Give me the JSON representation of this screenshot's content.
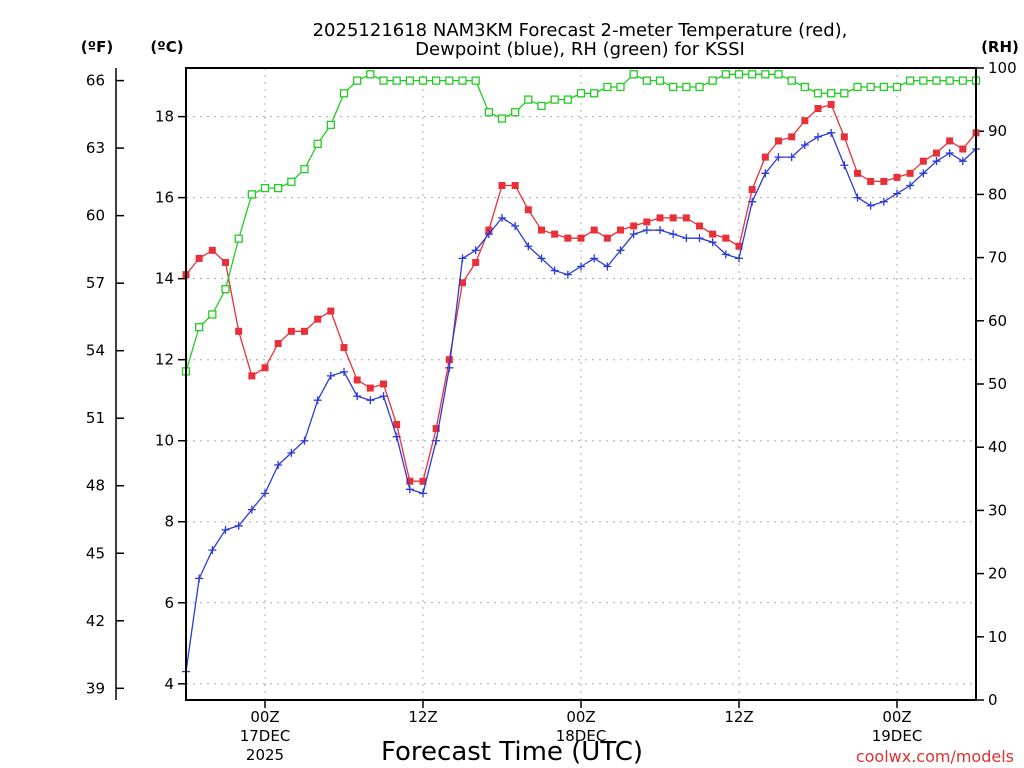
{
  "chart_data": {
    "type": "line",
    "title_line1": "2025121618 NAM3KM Forecast 2-meter Temperature (red),",
    "title_line2": "Dewpoint (blue), RH (green) for KSSI",
    "xlabel": "Forecast Time (UTC)",
    "credit": "coolwx.com/models",
    "units": {
      "fahrenheit": "(ºF)",
      "celsius": "(ºC)",
      "rh": "(RH)"
    },
    "celsius_axis": {
      "min": 3.6,
      "max": 19.2,
      "ticks": [
        "4",
        "6",
        "8",
        "10",
        "12",
        "14",
        "16",
        "18"
      ]
    },
    "fahrenheit_ticks": [
      "39",
      "42",
      "45",
      "48",
      "51",
      "54",
      "57",
      "60",
      "63",
      "66"
    ],
    "rh_axis": {
      "min": 0,
      "max": 100,
      "ticks": [
        "0",
        "10",
        "20",
        "30",
        "40",
        "50",
        "60",
        "70",
        "80",
        "90",
        "100"
      ]
    },
    "x_range_hours": [
      18,
      78
    ],
    "x_ticks": [
      {
        "hour": 24,
        "label": "00Z",
        "date": "17DEC",
        "year": "2025"
      },
      {
        "hour": 36,
        "label": "12Z",
        "date": "",
        "year": ""
      },
      {
        "hour": 48,
        "label": "00Z",
        "date": "18DEC",
        "year": ""
      },
      {
        "hour": 60,
        "label": "12Z",
        "date": "",
        "year": ""
      },
      {
        "hour": 72,
        "label": "00Z",
        "date": "19DEC",
        "year": ""
      }
    ],
    "x_hours": [
      18,
      19,
      20,
      21,
      22,
      23,
      24,
      25,
      26,
      27,
      28,
      29,
      30,
      31,
      32,
      33,
      34,
      35,
      36,
      37,
      38,
      39,
      40,
      41,
      42,
      43,
      44,
      45,
      46,
      47,
      48,
      49,
      50,
      51,
      52,
      53,
      54,
      55,
      56,
      57,
      58,
      59,
      60,
      61,
      62,
      63,
      64,
      65,
      66,
      67,
      68,
      69,
      70,
      71,
      72,
      73,
      74,
      75,
      76,
      77,
      78
    ],
    "series": [
      {
        "name": "Temperature",
        "unit": "C",
        "color": "#e8303a",
        "marker": "square",
        "values": [
          14.1,
          14.5,
          14.7,
          14.4,
          12.7,
          11.6,
          11.8,
          12.4,
          12.7,
          12.7,
          13.0,
          13.2,
          12.3,
          11.5,
          11.3,
          11.4,
          10.4,
          9.0,
          9.0,
          10.3,
          12.0,
          13.9,
          14.4,
          15.2,
          16.3,
          16.3,
          15.7,
          15.2,
          15.1,
          15.0,
          15.0,
          15.2,
          15.0,
          15.2,
          15.3,
          15.4,
          15.5,
          15.5,
          15.5,
          15.3,
          15.1,
          15.0,
          14.8,
          16.2,
          17.0,
          17.4,
          17.5,
          17.9,
          18.2,
          18.3,
          17.5,
          16.6,
          16.4,
          16.4,
          16.5,
          16.6,
          16.9,
          17.1,
          17.4,
          17.2,
          17.6
        ]
      },
      {
        "name": "Dewpoint",
        "unit": "C",
        "color": "#2b3bd8",
        "marker": "plus",
        "values": [
          4.3,
          6.6,
          7.3,
          7.8,
          7.9,
          8.3,
          8.7,
          9.4,
          9.7,
          10.0,
          11.0,
          11.6,
          11.7,
          11.1,
          11.0,
          11.1,
          10.1,
          8.8,
          8.7,
          10.0,
          11.8,
          14.5,
          14.7,
          15.1,
          15.5,
          15.3,
          14.8,
          14.5,
          14.2,
          14.1,
          14.3,
          14.5,
          14.3,
          14.7,
          15.1,
          15.2,
          15.2,
          15.1,
          15.0,
          15.0,
          14.9,
          14.6,
          14.5,
          15.9,
          16.6,
          17.0,
          17.0,
          17.3,
          17.5,
          17.6,
          16.8,
          16.0,
          15.8,
          15.9,
          16.1,
          16.3,
          16.6,
          16.9,
          17.1,
          16.9,
          17.2
        ]
      },
      {
        "name": "RH",
        "unit": "%",
        "color": "#22cc22",
        "marker": "hollow-square",
        "values": [
          52,
          59,
          61,
          65,
          73,
          80,
          81,
          81,
          82,
          84,
          88,
          91,
          96,
          98,
          99,
          98,
          98,
          98,
          98,
          98,
          98,
          98,
          98,
          93,
          92,
          93,
          95,
          94,
          95,
          95,
          96,
          96,
          97,
          97,
          99,
          98,
          98,
          97,
          97,
          97,
          98,
          99,
          99,
          99,
          99,
          99,
          98,
          97,
          96,
          96,
          96,
          97,
          97,
          97,
          97,
          98,
          98,
          98,
          98,
          98,
          98
        ]
      }
    ]
  }
}
